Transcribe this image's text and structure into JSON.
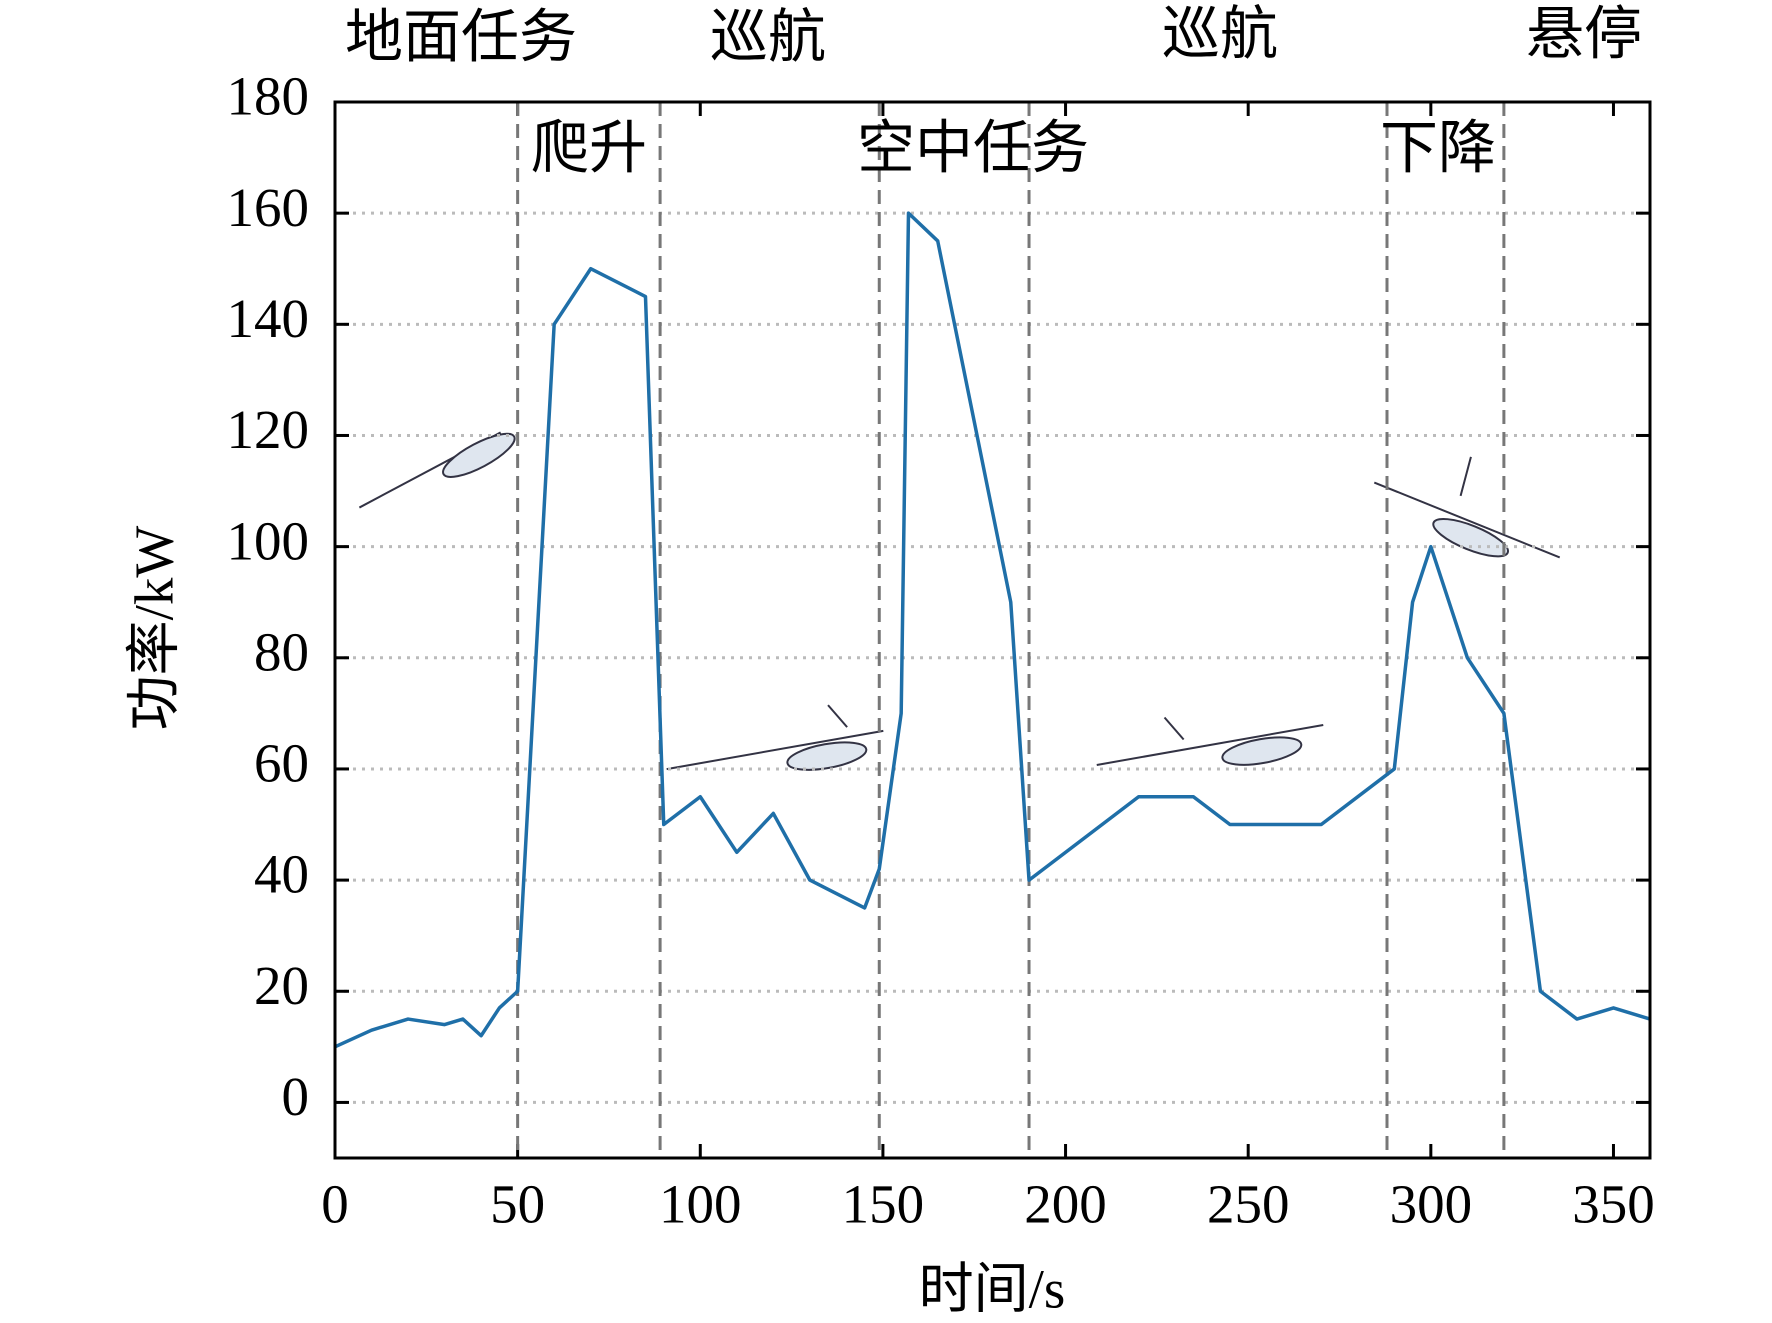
{
  "chart_data": {
    "type": "line",
    "x_label": "时间/s",
    "y_label": "功率/kW",
    "x": [
      0,
      10,
      20,
      30,
      35,
      40,
      45,
      50,
      60,
      70,
      85,
      90,
      100,
      110,
      120,
      130,
      145,
      149,
      155,
      157,
      165,
      185,
      190,
      220,
      235,
      245,
      270,
      290,
      295,
      300,
      310,
      320,
      330,
      340,
      350,
      360
    ],
    "series": [
      {
        "color": "#1f6fa8",
        "values": [
          10,
          13,
          15,
          14,
          15,
          12,
          17,
          20,
          140,
          150,
          145,
          50,
          55,
          45,
          52,
          40,
          35,
          42,
          70,
          160,
          155,
          90,
          40,
          55,
          55,
          50,
          50,
          60,
          90,
          100,
          80,
          70,
          20,
          15,
          17,
          15
        ]
      }
    ],
    "xlim": [
      0,
      360
    ],
    "xticks": [
      0,
      50,
      100,
      150,
      200,
      250,
      300,
      350
    ],
    "ylim": [
      -10,
      180
    ],
    "yticks": [
      0,
      20,
      40,
      60,
      80,
      100,
      120,
      140,
      160,
      180
    ],
    "grid": true,
    "phase_boundaries": [
      50,
      89,
      149,
      190,
      288,
      320
    ],
    "annotations": [
      "地面任务",
      "巡航",
      "巡航",
      "悬停",
      "爬升",
      "空中任务",
      "下降"
    ]
  }
}
